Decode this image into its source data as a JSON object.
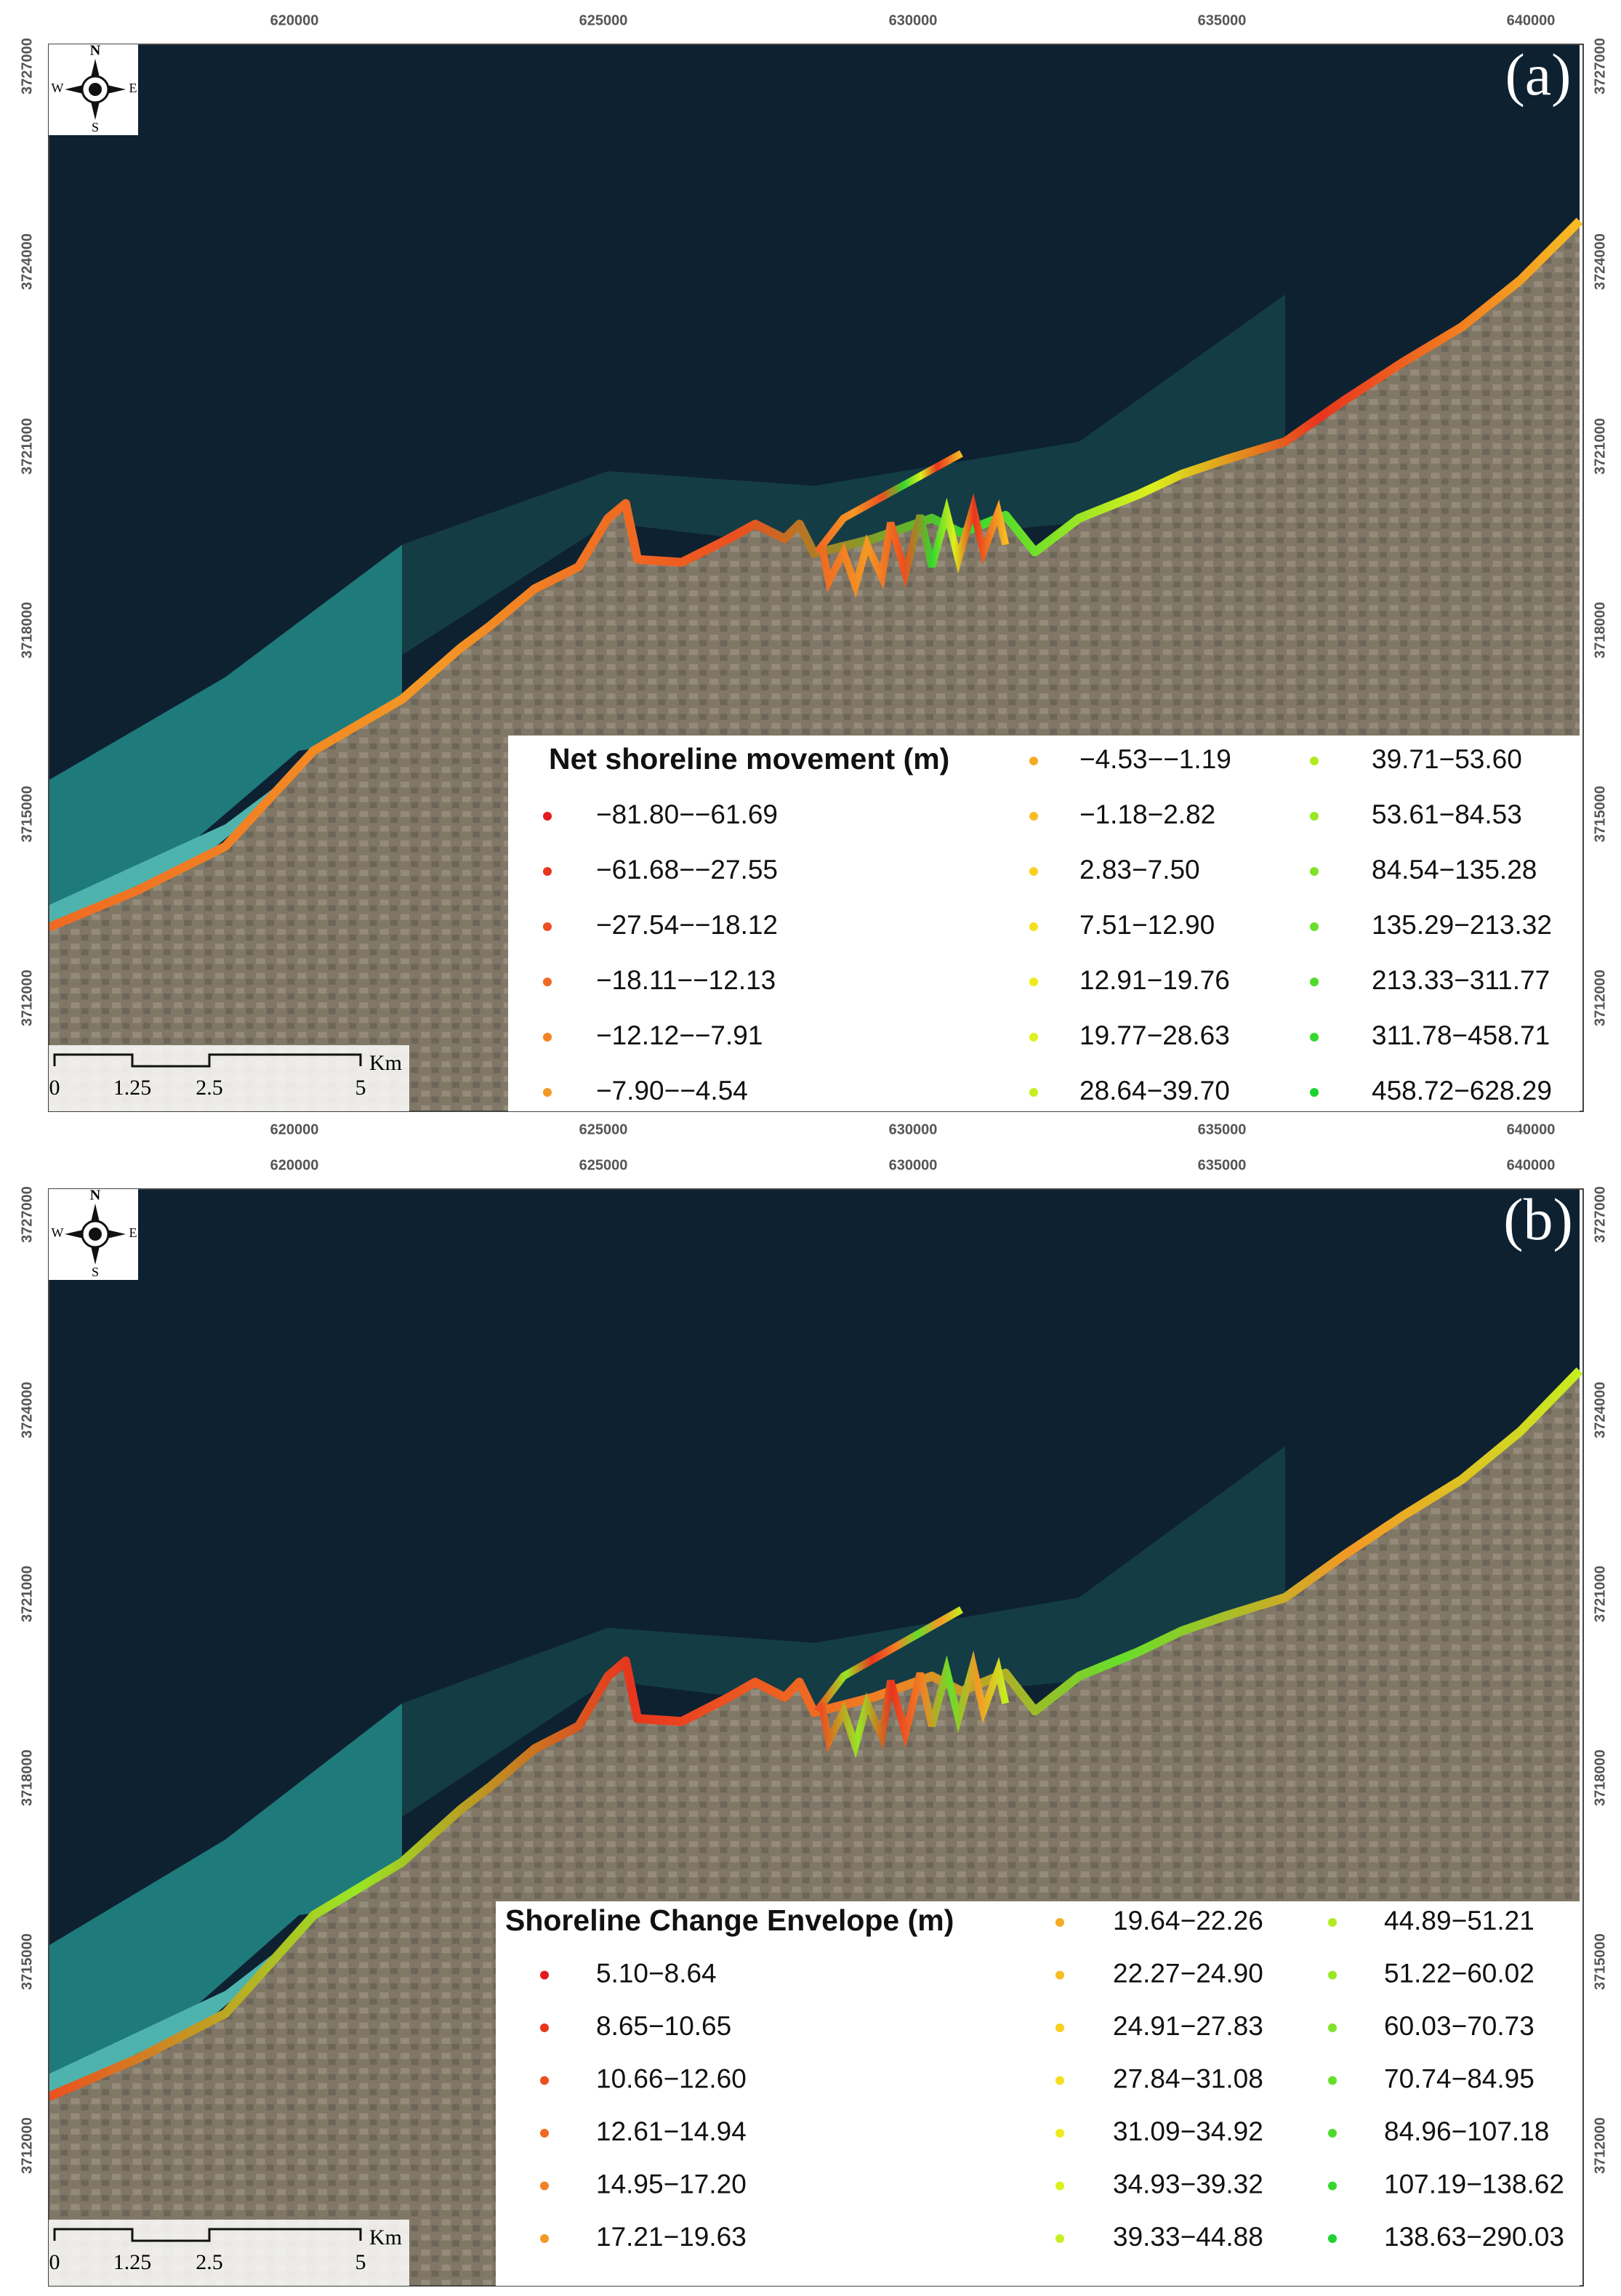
{
  "x_ticks": [
    "620000",
    "625000",
    "630000",
    "635000",
    "640000"
  ],
  "y_ticks": [
    "3727000",
    "3724000",
    "3721000",
    "3718000",
    "3715000",
    "3712000"
  ],
  "compass": {
    "north": "N",
    "east": "E",
    "south": "S",
    "west": "W"
  },
  "scale_bar": {
    "labels": [
      "0",
      "1.25",
      "2.5",
      "5"
    ],
    "unit": "Km"
  },
  "panels": [
    {
      "label": "(a)",
      "legend": {
        "title": "Net shoreline movement (m)",
        "items": [
          {
            "label": "−81.80−−61.69",
            "color": "#e31a1c"
          },
          {
            "label": "−61.68−−27.55",
            "color": "#e8351e"
          },
          {
            "label": "−27.54−−18.12",
            "color": "#ec4f20"
          },
          {
            "label": "−18.11−−12.13",
            "color": "#ef6a22"
          },
          {
            "label": "−12.12−−7.91",
            "color": "#f28224"
          },
          {
            "label": "−7.90−−4.54",
            "color": "#f49825"
          },
          {
            "label": "−4.53−−1.19",
            "color": "#f6ab24"
          },
          {
            "label": "−1.18−2.82",
            "color": "#f8bd22"
          },
          {
            "label": "2.83−7.50",
            "color": "#f9cf20"
          },
          {
            "label": "7.51−12.90",
            "color": "#f6df1e"
          },
          {
            "label": "12.91−19.76",
            "color": "#eeeb1c"
          },
          {
            "label": "19.77−28.63",
            "color": "#dcf01e"
          },
          {
            "label": "28.64−39.70",
            "color": "#c6ee20"
          },
          {
            "label": "39.71−53.60",
            "color": "#b0eb22"
          },
          {
            "label": "53.61−84.53",
            "color": "#98e725"
          },
          {
            "label": "84.54−135.28",
            "color": "#80e328"
          },
          {
            "label": "135.29−213.32",
            "color": "#67df2a"
          },
          {
            "label": "213.33−311.77",
            "color": "#4edb2c"
          },
          {
            "label": "311.78−458.71",
            "color": "#35d72e"
          },
          {
            "label": "458.72−628.29",
            "color": "#1ed330"
          }
        ]
      }
    },
    {
      "label": "(b)",
      "legend": {
        "title": "Shoreline Change Envelope (m)",
        "items": [
          {
            "label": "5.10−8.64",
            "color": "#e31a1c"
          },
          {
            "label": "8.65−10.65",
            "color": "#e8351e"
          },
          {
            "label": "10.66−12.60",
            "color": "#ec4f20"
          },
          {
            "label": "12.61−14.94",
            "color": "#ef6a22"
          },
          {
            "label": "14.95−17.20",
            "color": "#f28224"
          },
          {
            "label": "17.21−19.63",
            "color": "#f49825"
          },
          {
            "label": "19.64−22.26",
            "color": "#f6ab24"
          },
          {
            "label": "22.27−24.90",
            "color": "#f8bd22"
          },
          {
            "label": "24.91−27.83",
            "color": "#f9cf20"
          },
          {
            "label": "27.84−31.08",
            "color": "#f6df1e"
          },
          {
            "label": "31.09−34.92",
            "color": "#eeeb1c"
          },
          {
            "label": "34.93−39.32",
            "color": "#dcf01e"
          },
          {
            "label": "39.33−44.88",
            "color": "#c6ee20"
          },
          {
            "label": "44.89−51.21",
            "color": "#b0eb22"
          },
          {
            "label": "51.22−60.02",
            "color": "#98e725"
          },
          {
            "label": "60.03−70.73",
            "color": "#80e328"
          },
          {
            "label": "70.74−84.95",
            "color": "#67df2a"
          },
          {
            "label": "84.96−107.18",
            "color": "#4edb2c"
          },
          {
            "label": "107.19−138.62",
            "color": "#35d72e"
          },
          {
            "label": "138.63−290.03",
            "color": "#1ed330"
          }
        ]
      }
    }
  ]
}
